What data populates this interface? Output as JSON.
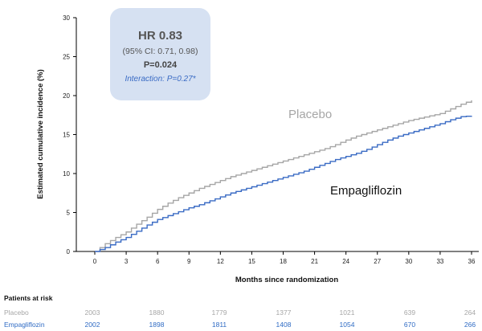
{
  "chart_data": {
    "type": "line",
    "xlabel": "Months since randomization",
    "ylabel": "Estimated cumulative incidence (%)",
    "xlim": [
      0,
      36
    ],
    "ylim": [
      0,
      30
    ],
    "xticks": [
      0,
      3,
      6,
      9,
      12,
      15,
      18,
      21,
      24,
      27,
      30,
      33,
      36
    ],
    "yticks": [
      0,
      5,
      10,
      15,
      20,
      25,
      30
    ],
    "grid": false,
    "series": [
      {
        "name": "Placebo",
        "color": "#a6a6a6",
        "x": [
          0,
          1,
          2,
          3,
          4,
          5,
          6,
          7,
          8,
          9,
          10,
          11,
          12,
          13,
          14,
          15,
          16,
          17,
          18,
          19,
          20,
          21,
          22,
          23,
          24,
          25,
          26,
          27,
          28,
          29,
          30,
          31,
          32,
          33,
          34,
          35,
          36
        ],
        "y": [
          0,
          1.0,
          1.8,
          2.5,
          3.5,
          4.4,
          5.4,
          6.2,
          6.9,
          7.5,
          8.1,
          8.6,
          9.1,
          9.6,
          10.0,
          10.4,
          10.8,
          11.2,
          11.6,
          12.0,
          12.4,
          12.8,
          13.2,
          13.7,
          14.3,
          14.8,
          15.2,
          15.6,
          16.0,
          16.4,
          16.8,
          17.1,
          17.4,
          17.7,
          18.3,
          18.9,
          19.4
        ]
      },
      {
        "name": "Empagliflozin",
        "color": "#3a6bc4",
        "x": [
          0,
          1,
          2,
          3,
          4,
          5,
          6,
          7,
          8,
          9,
          10,
          11,
          12,
          13,
          14,
          15,
          16,
          17,
          18,
          19,
          20,
          21,
          22,
          23,
          24,
          25,
          26,
          27,
          28,
          29,
          30,
          31,
          32,
          33,
          34,
          35,
          36
        ],
        "y": [
          0,
          0.5,
          1.2,
          1.8,
          2.6,
          3.4,
          4.1,
          4.6,
          5.1,
          5.6,
          6.0,
          6.5,
          7.0,
          7.5,
          7.9,
          8.3,
          8.7,
          9.1,
          9.5,
          9.9,
          10.3,
          10.8,
          11.3,
          11.8,
          12.2,
          12.6,
          13.1,
          13.7,
          14.3,
          14.8,
          15.2,
          15.6,
          16.0,
          16.4,
          16.9,
          17.3,
          17.4
        ]
      }
    ],
    "hr_box": {
      "title": "HR 0.83",
      "ci": "(95% CI: 0.71, 0.98)",
      "p": "P=0.024",
      "interaction": "Interaction: P=0.27*"
    },
    "series_labels": {
      "placebo": "Placebo",
      "empagliflozin": "Empagliflozin"
    },
    "risk_table": {
      "title": "Patients at risk",
      "timepoints": [
        0,
        6,
        12,
        18,
        24,
        30,
        36
      ],
      "rows": [
        {
          "name": "Placebo",
          "values": [
            2003,
            1880,
            1779,
            1377,
            1021,
            639,
            264
          ],
          "color": "#a6a6a6"
        },
        {
          "name": "Empagliflozin",
          "values": [
            2002,
            1898,
            1811,
            1408,
            1054,
            670,
            266
          ],
          "color": "#2f6bc4"
        }
      ]
    }
  }
}
